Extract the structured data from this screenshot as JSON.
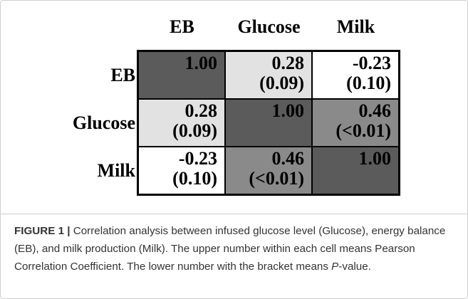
{
  "figure": {
    "columns": [
      "EB",
      "Glucose",
      "Milk"
    ],
    "rows": [
      {
        "label": "EB",
        "cells": [
          {
            "r": "1.00",
            "color": "#5b5b5b"
          },
          {
            "r": "0.28",
            "p": "(0.09)",
            "color": "#e2e2e2"
          },
          {
            "r": "-0.23",
            "p": "(0.10)",
            "color": "#ffffff"
          }
        ]
      },
      {
        "label": "Glucose",
        "cells": [
          {
            "r": "0.28",
            "p": "(0.09)",
            "color": "#e2e2e2"
          },
          {
            "r": "1.00",
            "color": "#5b5b5b"
          },
          {
            "r": "0.46",
            "p": "(<0.01)",
            "color": "#8a8a8a"
          }
        ]
      },
      {
        "label": "Milk",
        "cells": [
          {
            "r": "-0.23",
            "p": "(0.10)",
            "color": "#ffffff"
          },
          {
            "r": "0.46",
            "p": "(<0.01)",
            "color": "#8a8a8a"
          },
          {
            "r": "1.00",
            "color": "#5b5b5b"
          }
        ]
      }
    ]
  },
  "caption": {
    "label": "FIGURE 1 |",
    "text": "Correlation analysis between infused glucose level (Glucose), energy balance (EB), and milk production (Milk). The upper number within each cell means Pearson Correlation Coefficient. The lower number with the bracket means",
    "italic": "P",
    "end": "-value."
  }
}
